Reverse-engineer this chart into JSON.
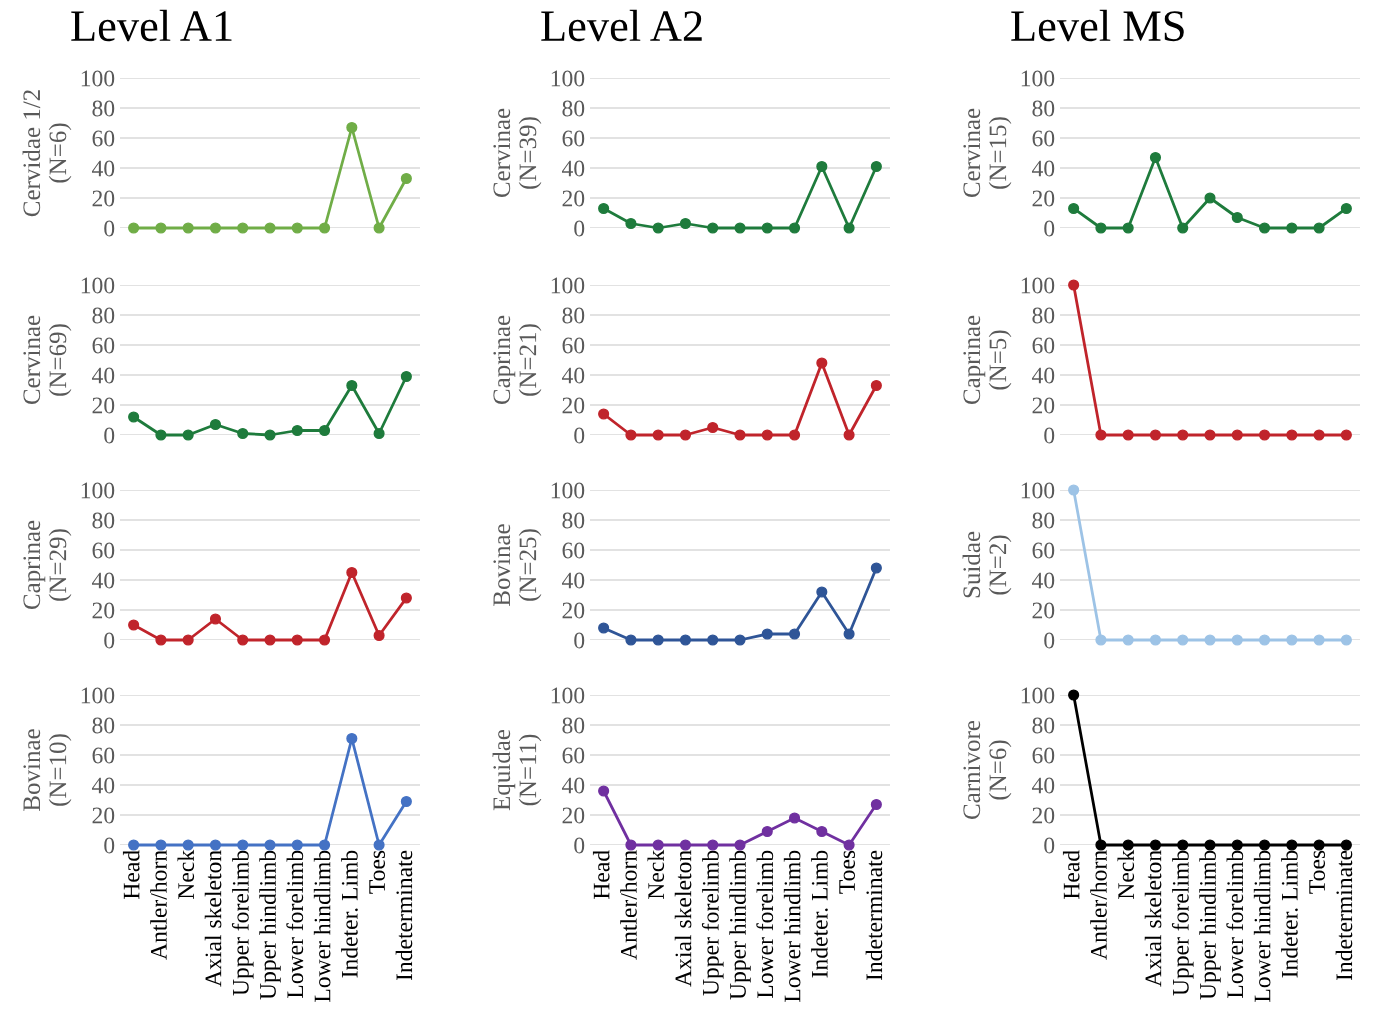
{
  "chart_data": [
    {
      "type": "line",
      "title": "Level A1",
      "ylabel": "Cervidae 1/2\n(N=6)",
      "categories": [
        null,
        null,
        null,
        null,
        null,
        null,
        null,
        null,
        null,
        null,
        null
      ],
      "series": [
        {
          "color": "#70ad47",
          "values": [
            0,
            0,
            0,
            0,
            0,
            0,
            0,
            0,
            67,
            0,
            33
          ]
        }
      ],
      "ylim": [
        0,
        100
      ],
      "yticks": [
        0,
        20,
        40,
        60,
        80,
        100
      ],
      "grid": "y",
      "marker": "circle",
      "tick_labels": "y"
    },
    {
      "type": "line",
      "ylabel": "Cervinae\n(N=69)",
      "categories": [
        null,
        null,
        null,
        null,
        null,
        null,
        null,
        null,
        null,
        null,
        null
      ],
      "series": [
        {
          "color": "#1e7b3c",
          "values": [
            12,
            0,
            0,
            7,
            1,
            0,
            3,
            3,
            33,
            1,
            39
          ]
        }
      ],
      "ylim": [
        0,
        100
      ],
      "yticks": [
        0,
        20,
        40,
        60,
        80,
        100
      ],
      "grid": "y",
      "marker": "circle",
      "tick_labels": "y"
    },
    {
      "type": "line",
      "ylabel": "Caprinae\n(N=29)",
      "categories": [
        null,
        null,
        null,
        null,
        null,
        null,
        null,
        null,
        null,
        null,
        null
      ],
      "series": [
        {
          "color": "#c0242b",
          "values": [
            10,
            0,
            0,
            14,
            0,
            0,
            0,
            0,
            45,
            3,
            28
          ]
        }
      ],
      "ylim": [
        0,
        100
      ],
      "yticks": [
        0,
        20,
        40,
        60,
        80,
        100
      ],
      "grid": "y",
      "marker": "circle",
      "tick_labels": "y"
    },
    {
      "type": "line",
      "ylabel": "Bovinae\n(N=10)",
      "categories": [
        "Head",
        "Antler/horn",
        "Neck",
        "Axial skeleton",
        "Upper forelimb",
        "Upper hindlimb",
        "Lower forelimb",
        "Lower hindlimb",
        "Indeter. Limb",
        "Toes",
        "Indeterminate"
      ],
      "series": [
        {
          "color": "#4472c4",
          "values": [
            0,
            0,
            0,
            0,
            0,
            0,
            0,
            0,
            71,
            0,
            29
          ]
        }
      ],
      "ylim": [
        0,
        100
      ],
      "yticks": [
        0,
        20,
        40,
        60,
        80,
        100
      ],
      "grid": "y",
      "marker": "circle"
    },
    {
      "type": "line",
      "title": "Level A2",
      "ylabel": "Cervinae\n(N=39)",
      "categories": [
        null,
        null,
        null,
        null,
        null,
        null,
        null,
        null,
        null,
        null,
        null
      ],
      "series": [
        {
          "color": "#1e7b3c",
          "values": [
            13,
            3,
            0,
            3,
            0,
            0,
            0,
            0,
            41,
            0,
            41
          ]
        }
      ],
      "ylim": [
        0,
        100
      ],
      "yticks": [
        0,
        20,
        40,
        60,
        80,
        100
      ],
      "grid": "y",
      "marker": "circle",
      "tick_labels": "y"
    },
    {
      "type": "line",
      "ylabel": "Caprinae\n(N=21)",
      "categories": [
        null,
        null,
        null,
        null,
        null,
        null,
        null,
        null,
        null,
        null,
        null
      ],
      "series": [
        {
          "color": "#c0242b",
          "values": [
            14,
            0,
            0,
            0,
            5,
            0,
            0,
            0,
            48,
            0,
            33
          ]
        }
      ],
      "ylim": [
        0,
        100
      ],
      "yticks": [
        0,
        20,
        40,
        60,
        80,
        100
      ],
      "grid": "y",
      "marker": "circle",
      "tick_labels": "y"
    },
    {
      "type": "line",
      "ylabel": "Bovinae\n(N=25)",
      "categories": [
        null,
        null,
        null,
        null,
        null,
        null,
        null,
        null,
        null,
        null,
        null
      ],
      "series": [
        {
          "color": "#2f5597",
          "values": [
            8,
            0,
            0,
            0,
            0,
            0,
            4,
            4,
            32,
            4,
            48
          ]
        }
      ],
      "ylim": [
        0,
        100
      ],
      "yticks": [
        0,
        20,
        40,
        60,
        80,
        100
      ],
      "grid": "y",
      "marker": "circle",
      "tick_labels": "y"
    },
    {
      "type": "line",
      "ylabel": "Equidae\n(N=11)",
      "categories": [
        "Head",
        "Antler/horn",
        "Neck",
        "Axial skeleton",
        "Upper forelimb",
        "Upper hindlimb",
        "Lower forelimb",
        "Lower hindlimb",
        "Indeter. Limb",
        "Toes",
        "Indeterminate"
      ],
      "series": [
        {
          "color": "#7030a0",
          "values": [
            36,
            0,
            0,
            0,
            0,
            0,
            9,
            18,
            9,
            0,
            27
          ]
        }
      ],
      "ylim": [
        0,
        100
      ],
      "yticks": [
        0,
        20,
        40,
        60,
        80,
        100
      ],
      "grid": "y",
      "marker": "circle"
    },
    {
      "type": "line",
      "title": "Level MS",
      "ylabel": "Cervinae\n(N=15)",
      "categories": [
        null,
        null,
        null,
        null,
        null,
        null,
        null,
        null,
        null,
        null,
        null
      ],
      "series": [
        {
          "color": "#1e7b3c",
          "values": [
            13,
            0,
            0,
            47,
            0,
            20,
            7,
            0,
            0,
            0,
            13
          ]
        }
      ],
      "ylim": [
        0,
        100
      ],
      "yticks": [
        0,
        20,
        40,
        60,
        80,
        100
      ],
      "grid": "y",
      "marker": "circle",
      "tick_labels": "y"
    },
    {
      "type": "line",
      "ylabel": "Caprinae\n(N=5)",
      "categories": [
        null,
        null,
        null,
        null,
        null,
        null,
        null,
        null,
        null,
        null,
        null
      ],
      "series": [
        {
          "color": "#c0242b",
          "values": [
            100,
            0,
            0,
            0,
            0,
            0,
            0,
            0,
            0,
            0,
            0
          ]
        }
      ],
      "ylim": [
        0,
        100
      ],
      "yticks": [
        0,
        20,
        40,
        60,
        80,
        100
      ],
      "grid": "y",
      "marker": "circle",
      "tick_labels": "y"
    },
    {
      "type": "line",
      "ylabel": "Suidae\n(N=2)",
      "categories": [
        null,
        null,
        null,
        null,
        null,
        null,
        null,
        null,
        null,
        null,
        null
      ],
      "series": [
        {
          "color": "#9dc3e6",
          "values": [
            100,
            0,
            0,
            0,
            0,
            0,
            0,
            0,
            0,
            0,
            0
          ]
        }
      ],
      "ylim": [
        0,
        100
      ],
      "yticks": [
        0,
        20,
        40,
        60,
        80,
        100
      ],
      "grid": "y",
      "marker": "circle",
      "tick_labels": "y"
    },
    {
      "type": "line",
      "ylabel": "Carnivore\n(N=6)",
      "categories": [
        "Head",
        "Antler/horn",
        "Neck",
        "Axial skeleton",
        "Upper forelimb",
        "Upper hindlimb",
        "Lower forelimb",
        "Lower hindlimb",
        "Indeter. Limb",
        "Toes",
        "Indeterminate"
      ],
      "series": [
        {
          "color": "#000000",
          "values": [
            100,
            0,
            0,
            0,
            0,
            0,
            0,
            0,
            0,
            0,
            0
          ]
        }
      ],
      "ylim": [
        0,
        100
      ],
      "yticks": [
        0,
        20,
        40,
        60,
        80,
        100
      ],
      "grid": "y",
      "marker": "circle"
    }
  ]
}
